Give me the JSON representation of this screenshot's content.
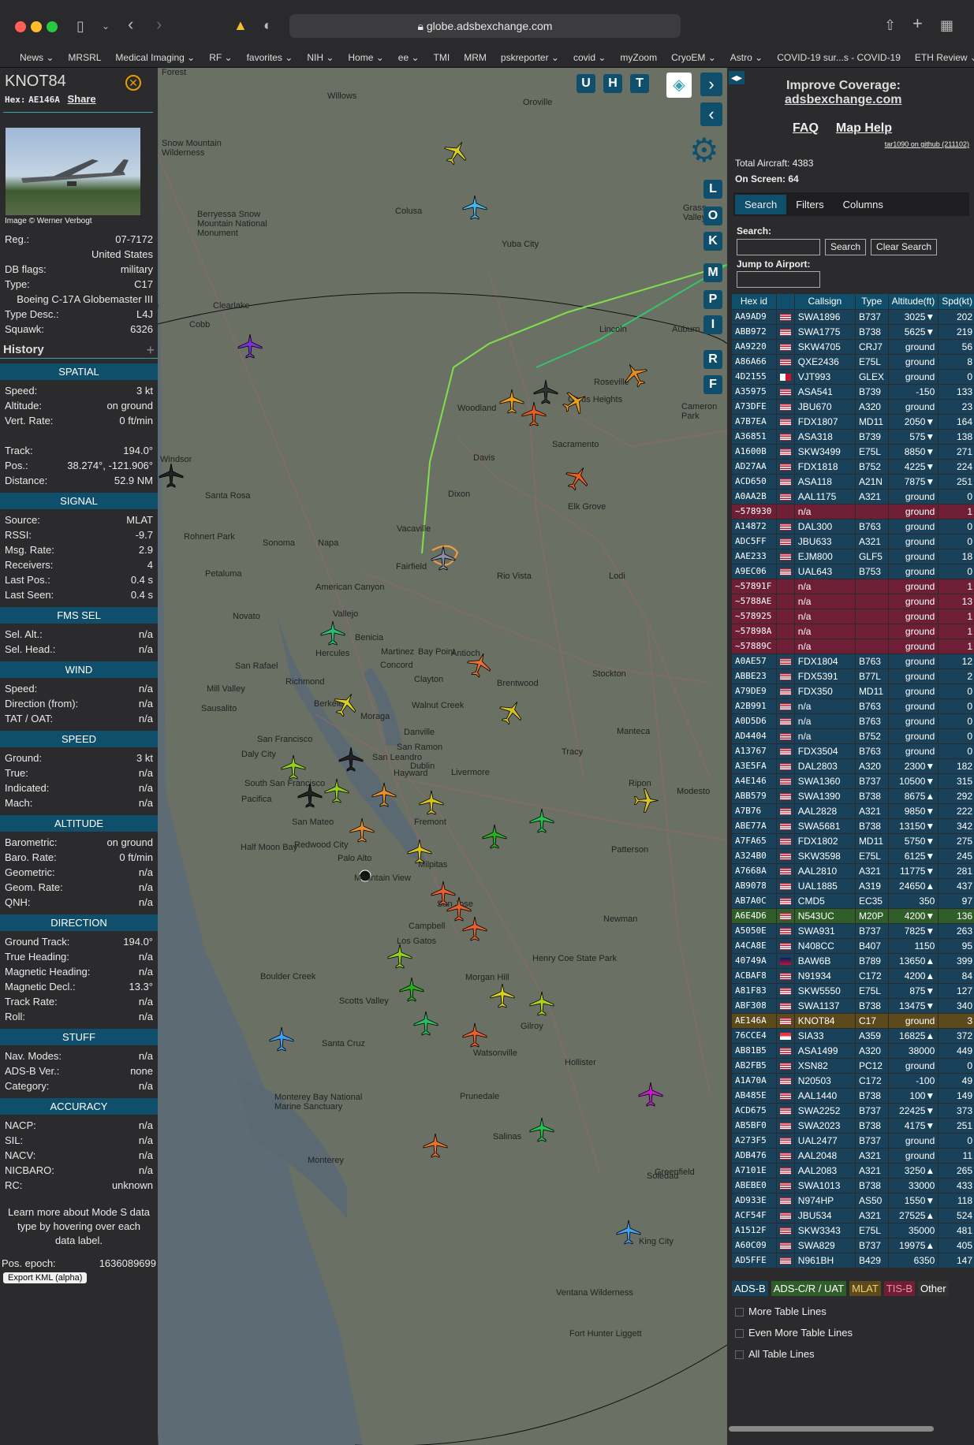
{
  "browser": {
    "url": "globe.adsbexchange.com",
    "bookmarks": [
      "News ⌄",
      "MRSRL",
      "Medical Imaging ⌄",
      "RF ⌄",
      "favorites ⌄",
      "NIH ⌄",
      "Home ⌄",
      "ee ⌄",
      "TMI",
      "MRM",
      "pskreporter ⌄",
      "covid ⌄",
      "myZoom",
      "CryoEM ⌄",
      "Astro ⌄",
      "COVID-19 sur...s - COVID-19",
      "ETH Review ⌄"
    ]
  },
  "left": {
    "callsign": "KNOT84",
    "hex_label": "Hex:",
    "hex": "AE146A",
    "share": "Share",
    "image_credit": "Image © Werner Verbogt",
    "info": [
      {
        "k": "Reg.:",
        "v": "07-7172"
      },
      {
        "k": "",
        "v": "United States"
      },
      {
        "k": "DB flags:",
        "v": "military"
      },
      {
        "k": "Type:",
        "v": "C17"
      },
      {
        "k": "",
        "v": "Boeing C-17A Globemaster III"
      },
      {
        "k": "Type Desc.:",
        "v": "L4J"
      },
      {
        "k": "Squawk:",
        "v": "6326"
      }
    ],
    "history_label": "History",
    "sections": [
      {
        "title": "SPATIAL",
        "rows": [
          [
            "Speed:",
            "3 kt"
          ],
          [
            "Altitude:",
            "on ground"
          ],
          [
            "Vert. Rate:",
            "0 ft/min"
          ],
          [
            "",
            ""
          ],
          [
            "Track:",
            "194.0°"
          ],
          [
            "Pos.:",
            "38.274°, -121.906°"
          ],
          [
            "Distance:",
            "52.9 NM"
          ]
        ]
      },
      {
        "title": "SIGNAL",
        "rows": [
          [
            "Source:",
            "MLAT"
          ],
          [
            "RSSI:",
            "-9.7"
          ],
          [
            "Msg. Rate:",
            "2.9"
          ],
          [
            "Receivers:",
            "4"
          ],
          [
            "Last Pos.:",
            "0.4 s"
          ],
          [
            "Last Seen:",
            "0.4 s"
          ]
        ]
      },
      {
        "title": "FMS SEL",
        "rows": [
          [
            "Sel. Alt.:",
            "n/a"
          ],
          [
            "Sel. Head.:",
            "n/a"
          ]
        ]
      },
      {
        "title": "WIND",
        "rows": [
          [
            "Speed:",
            "n/a"
          ],
          [
            "Direction (from):",
            "n/a"
          ],
          [
            "TAT / OAT:",
            "n/a"
          ]
        ]
      },
      {
        "title": "SPEED",
        "rows": [
          [
            "Ground:",
            "3 kt"
          ],
          [
            "True:",
            "n/a"
          ],
          [
            "Indicated:",
            "n/a"
          ],
          [
            "Mach:",
            "n/a"
          ]
        ]
      },
      {
        "title": "ALTITUDE",
        "rows": [
          [
            "Barometric:",
            "on ground"
          ],
          [
            "Baro. Rate:",
            "0 ft/min"
          ],
          [
            "Geometric:",
            "n/a"
          ],
          [
            "Geom. Rate:",
            "n/a"
          ],
          [
            "QNH:",
            "n/a"
          ]
        ]
      },
      {
        "title": "DIRECTION",
        "rows": [
          [
            "Ground Track:",
            "194.0°"
          ],
          [
            "True Heading:",
            "n/a"
          ],
          [
            "Magnetic Heading:",
            "n/a"
          ],
          [
            "Magnetic Decl.:",
            "13.3°"
          ],
          [
            "Track Rate:",
            "n/a"
          ],
          [
            "Roll:",
            "n/a"
          ]
        ]
      },
      {
        "title": "STUFF",
        "rows": [
          [
            "Nav. Modes:",
            "n/a"
          ],
          [
            "ADS-B Ver.:",
            "none"
          ],
          [
            "Category:",
            "n/a"
          ]
        ]
      },
      {
        "title": "ACCURACY",
        "rows": [
          [
            "NACP:",
            "n/a"
          ],
          [
            "SIL:",
            "n/a"
          ],
          [
            "NACV:",
            "n/a"
          ],
          [
            "NICBARO:",
            "n/a"
          ],
          [
            "RC:",
            "unknown"
          ]
        ]
      }
    ],
    "learn_more": "Learn more about Mode S data type by hovering over each data label.",
    "pos_epoch_label": "Pos. epoch:",
    "pos_epoch": "1636089699",
    "export_kml": "Export KML (alpha)"
  },
  "map": {
    "buttons_top": [
      "U",
      "H",
      "T"
    ],
    "buttons_side": [
      "L",
      "O",
      "K",
      "M",
      "P",
      "I",
      "R",
      "F"
    ],
    "towns": [
      {
        "t": "Forest"
      },
      {
        "t": "Willows"
      },
      {
        "t": "Oroville"
      },
      {
        "t": "Snow Mountain Wilderness"
      },
      {
        "t": "Berryessa Snow Mountain National Monument"
      },
      {
        "t": "Colusa"
      },
      {
        "t": "Yuba City"
      },
      {
        "t": "Grass Valley"
      },
      {
        "t": "Clearlake"
      },
      {
        "t": "Cobb"
      },
      {
        "t": "Lincoln"
      },
      {
        "t": "Auburn"
      },
      {
        "t": "Roseville"
      },
      {
        "t": "Woodland"
      },
      {
        "t": "Citrus Heights"
      },
      {
        "t": "Cameron Park"
      },
      {
        "t": "Sacramento"
      },
      {
        "t": "Davis"
      },
      {
        "t": "Windsor"
      },
      {
        "t": "Santa Rosa"
      },
      {
        "t": "Dixon"
      },
      {
        "t": "Elk Grove"
      },
      {
        "t": "Vacaville"
      },
      {
        "t": "Rohnert Park"
      },
      {
        "t": "Sonoma"
      },
      {
        "t": "Napa"
      },
      {
        "t": "Fairfield"
      },
      {
        "t": "Petaluma"
      },
      {
        "t": "Rio Vista"
      },
      {
        "t": "Lodi"
      },
      {
        "t": "Novato"
      },
      {
        "t": "American Canyon"
      },
      {
        "t": "Vallejo"
      },
      {
        "t": "San Rafael"
      },
      {
        "t": "Benicia"
      },
      {
        "t": "Martinez"
      },
      {
        "t": "Bay Point"
      },
      {
        "t": "Antioch"
      },
      {
        "t": "Hercules"
      },
      {
        "t": "Concord"
      },
      {
        "t": "Brentwood"
      },
      {
        "t": "Richmond"
      },
      {
        "t": "Clayton"
      },
      {
        "t": "Stockton"
      },
      {
        "t": "Mill Valley"
      },
      {
        "t": "Berkeley"
      },
      {
        "t": "Walnut Creek"
      },
      {
        "t": "Moraga"
      },
      {
        "t": "Sausalito"
      },
      {
        "t": "Danville"
      },
      {
        "t": "Manteca"
      },
      {
        "t": "San Francisco"
      },
      {
        "t": "San Ramon"
      },
      {
        "t": "Tracy"
      },
      {
        "t": "Daly City"
      },
      {
        "t": "San Leandro"
      },
      {
        "t": "Dublin"
      },
      {
        "t": "Livermore"
      },
      {
        "t": "Ripon"
      },
      {
        "t": "South San Francisco"
      },
      {
        "t": "Hayward"
      },
      {
        "t": "Modesto"
      },
      {
        "t": "Pacifica"
      },
      {
        "t": "San Mateo"
      },
      {
        "t": "Fremont"
      },
      {
        "t": "Half Moon Bay"
      },
      {
        "t": "Redwood City"
      },
      {
        "t": "Patterson"
      },
      {
        "t": "Palo Alto"
      },
      {
        "t": "Milpitas"
      },
      {
        "t": "Mountain View"
      },
      {
        "t": "San Jose"
      },
      {
        "t": "Newman"
      },
      {
        "t": "Campbell"
      },
      {
        "t": "Los Gatos"
      },
      {
        "t": "Henry Coe State Park"
      },
      {
        "t": "Boulder Creek"
      },
      {
        "t": "Morgan Hill"
      },
      {
        "t": "Scotts Valley"
      },
      {
        "t": "Gilroy"
      },
      {
        "t": "Santa Cruz"
      },
      {
        "t": "Watsonville"
      },
      {
        "t": "Hollister"
      },
      {
        "t": "Monterey Bay National Marine Sanctuary"
      },
      {
        "t": "Prunedale"
      },
      {
        "t": "Salinas"
      },
      {
        "t": "Monterey"
      },
      {
        "t": "Soledad"
      },
      {
        "t": "Greenfield"
      },
      {
        "t": "King City"
      },
      {
        "t": "Ventana Wilderness"
      },
      {
        "t": "Fort Hunter Liggett"
      }
    ]
  },
  "right": {
    "improve": "Improve Coverage:",
    "site": "adsbexchange.com",
    "faq": "FAQ",
    "map_help": "Map Help",
    "github": "tar1090 on github (211102)",
    "total_label": "Total Aircraft:",
    "total": "4383",
    "onscreen_label": "On Screen:",
    "onscreen": "64",
    "tabs": [
      "Search",
      "Filters",
      "Columns"
    ],
    "search_label": "Search:",
    "search_btn": "Search",
    "clear_btn": "Clear Search",
    "jump_label": "Jump to Airport:",
    "headers": [
      "Hex id",
      "",
      "Callsign",
      "Type",
      "Altitude(ft)",
      "Spd(kt)"
    ],
    "rows": [
      [
        "AA9AD9",
        "us",
        "SWA1896",
        "B737",
        "3025▼",
        "202",
        ""
      ],
      [
        "ABB972",
        "us",
        "SWA1775",
        "B738",
        "5625▼",
        "219",
        ""
      ],
      [
        "AA9220",
        "us",
        "SKW4705",
        "CRJ7",
        "ground",
        "56",
        ""
      ],
      [
        "A86A66",
        "us",
        "QXE2436",
        "E75L",
        "ground",
        "8",
        ""
      ],
      [
        "4D2155",
        "mt",
        "VJT993",
        "GLEX",
        "ground",
        "0",
        ""
      ],
      [
        "A35975",
        "us",
        "ASA541",
        "B739",
        "-150",
        "133",
        ""
      ],
      [
        "A73DFE",
        "us",
        "JBU670",
        "A320",
        "ground",
        "23",
        ""
      ],
      [
        "A7B7EA",
        "us",
        "FDX1807",
        "MD11",
        "2050▼",
        "164",
        ""
      ],
      [
        "A36851",
        "us",
        "ASA318",
        "B739",
        "575▼",
        "138",
        ""
      ],
      [
        "A1600B",
        "us",
        "SKW3499",
        "E75L",
        "8850▼",
        "271",
        ""
      ],
      [
        "AD27AA",
        "us",
        "FDX1818",
        "B752",
        "4225▼",
        "224",
        ""
      ],
      [
        "ACD650",
        "us",
        "ASA118",
        "A21N",
        "7875▼",
        "251",
        ""
      ],
      [
        "A0AA2B",
        "us",
        "AAL1175",
        "A321",
        "ground",
        "0",
        ""
      ],
      [
        "~578930",
        "",
        "n/a",
        "",
        "ground",
        "1",
        "tisb"
      ],
      [
        "A14872",
        "us",
        "DAL300",
        "B763",
        "ground",
        "0",
        ""
      ],
      [
        "ADC5FF",
        "us",
        "JBU633",
        "A321",
        "ground",
        "0",
        ""
      ],
      [
        "AAE233",
        "us",
        "EJM800",
        "GLF5",
        "ground",
        "18",
        ""
      ],
      [
        "A9EC06",
        "us",
        "UAL643",
        "B753",
        "ground",
        "0",
        ""
      ],
      [
        "~57891F",
        "",
        "n/a",
        "",
        "ground",
        "1",
        "tisb"
      ],
      [
        "~5788AE",
        "",
        "n/a",
        "",
        "ground",
        "13",
        "tisb"
      ],
      [
        "~578925",
        "",
        "n/a",
        "",
        "ground",
        "1",
        "tisb"
      ],
      [
        "~57898A",
        "",
        "n/a",
        "",
        "ground",
        "1",
        "tisb"
      ],
      [
        "~57889C",
        "",
        "n/a",
        "",
        "ground",
        "1",
        "tisb"
      ],
      [
        "A0AE57",
        "us",
        "FDX1804",
        "B763",
        "ground",
        "12",
        ""
      ],
      [
        "ABBE23",
        "us",
        "FDX5391",
        "B77L",
        "ground",
        "2",
        ""
      ],
      [
        "A79DE9",
        "us",
        "FDX350",
        "MD11",
        "ground",
        "0",
        ""
      ],
      [
        "A2B991",
        "us",
        "n/a",
        "B763",
        "ground",
        "0",
        ""
      ],
      [
        "A0D5D6",
        "us",
        "n/a",
        "B763",
        "ground",
        "0",
        ""
      ],
      [
        "AD4404",
        "us",
        "n/a",
        "B752",
        "ground",
        "0",
        ""
      ],
      [
        "A13767",
        "us",
        "FDX3504",
        "B763",
        "ground",
        "0",
        ""
      ],
      [
        "A3E5FA",
        "us",
        "DAL2803",
        "A320",
        "2300▼",
        "182",
        ""
      ],
      [
        "A4E146",
        "us",
        "SWA1360",
        "B737",
        "10500▼",
        "315",
        ""
      ],
      [
        "ABB579",
        "us",
        "SWA1390",
        "B738",
        "8675▲",
        "292",
        ""
      ],
      [
        "A7B76",
        "us",
        "AAL2828",
        "A321",
        "9850▼",
        "222",
        ""
      ],
      [
        "ABE77A",
        "us",
        "SWA5681",
        "B738",
        "13150▼",
        "342",
        ""
      ],
      [
        "A7FA65",
        "us",
        "FDX1802",
        "MD11",
        "5750▼",
        "275",
        ""
      ],
      [
        "A324B0",
        "us",
        "SKW3598",
        "E75L",
        "6125▼",
        "245",
        ""
      ],
      [
        "A7668A",
        "us",
        "AAL2810",
        "A321",
        "11775▼",
        "281",
        ""
      ],
      [
        "AB9078",
        "us",
        "UAL1885",
        "A319",
        "24650▲",
        "437",
        ""
      ],
      [
        "AB7A0C",
        "us",
        "CMD5",
        "EC35",
        "350",
        "97",
        ""
      ],
      [
        "A6E4D6",
        "us",
        "N543UC",
        "M20P",
        "4200▼",
        "136",
        "uat"
      ],
      [
        "A5050E",
        "us",
        "SWA931",
        "B737",
        "7825▼",
        "263",
        ""
      ],
      [
        "A4CA8E",
        "us",
        "N408CC",
        "B407",
        "1150",
        "95",
        ""
      ],
      [
        "40749A",
        "gb",
        "BAW6B",
        "B789",
        "13650▲",
        "399",
        ""
      ],
      [
        "ACBAF8",
        "us",
        "N91934",
        "C172",
        "4200▲",
        "84",
        ""
      ],
      [
        "A81F83",
        "us",
        "SKW5550",
        "E75L",
        "875▼",
        "127",
        ""
      ],
      [
        "ABF308",
        "us",
        "SWA1137",
        "B738",
        "13475▼",
        "340",
        ""
      ],
      [
        "AE146A",
        "us",
        "KNOT84",
        "C17",
        "ground",
        "3",
        "sel"
      ],
      [
        "76CCE4",
        "sg",
        "SIA33",
        "A359",
        "16825▲",
        "372",
        ""
      ],
      [
        "AB81B5",
        "us",
        "ASA1499",
        "A320",
        "38000",
        "449",
        ""
      ],
      [
        "AB2FB5",
        "us",
        "XSN82",
        "PC12",
        "ground",
        "0",
        ""
      ],
      [
        "A1A70A",
        "us",
        "N20503",
        "C172",
        "-100",
        "49",
        ""
      ],
      [
        "AB485E",
        "us",
        "AAL1440",
        "B738",
        "100▼",
        "149",
        ""
      ],
      [
        "ACD675",
        "us",
        "SWA2252",
        "B737",
        "22425▼",
        "373",
        ""
      ],
      [
        "AB5BF0",
        "us",
        "SWA2023",
        "B738",
        "4175▼",
        "251",
        ""
      ],
      [
        "A273F5",
        "us",
        "UAL2477",
        "B737",
        "ground",
        "0",
        ""
      ],
      [
        "ADB476",
        "us",
        "AAL2048",
        "A321",
        "ground",
        "11",
        ""
      ],
      [
        "A7101E",
        "us",
        "AAL2083",
        "A321",
        "3250▲",
        "265",
        ""
      ],
      [
        "ABEBE0",
        "us",
        "SWA1013",
        "B738",
        "33000",
        "433",
        ""
      ],
      [
        "AD933E",
        "us",
        "N974HP",
        "AS50",
        "1550▼",
        "118",
        ""
      ],
      [
        "ACF54F",
        "us",
        "JBU534",
        "A321",
        "27525▲",
        "524",
        ""
      ],
      [
        "A1512F",
        "us",
        "SKW3343",
        "E75L",
        "35000",
        "481",
        ""
      ],
      [
        "A60C09",
        "us",
        "SWA829",
        "B737",
        "19975▲",
        "405",
        ""
      ],
      [
        "AD5FFE",
        "us",
        "N961BH",
        "B429",
        "6350",
        "147",
        ""
      ]
    ],
    "legend": [
      "ADS-B",
      "ADS-C/R / UAT",
      "MLAT",
      "TIS-B",
      "Other"
    ],
    "checks": [
      "More Table Lines",
      "Even More Table Lines",
      "All Table Lines"
    ]
  }
}
